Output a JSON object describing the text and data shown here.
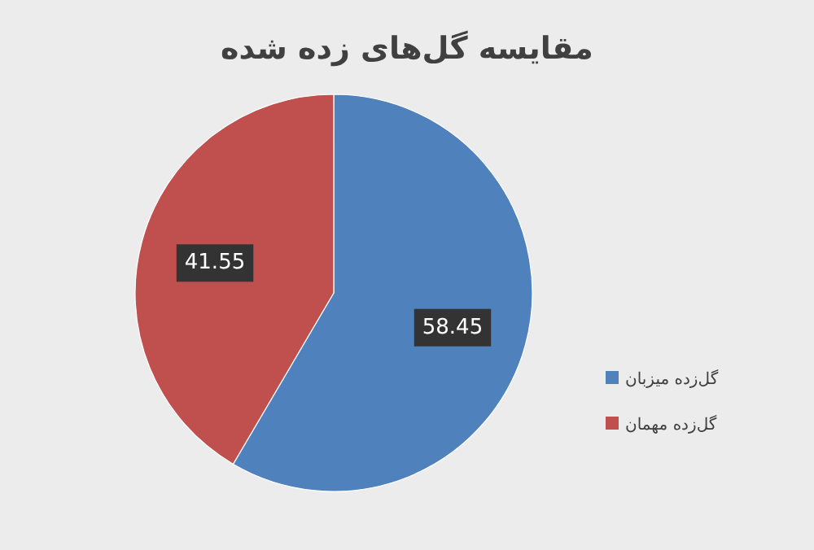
{
  "chart_data": {
    "type": "pie",
    "title": "مقایسه گل‌های زده شده",
    "categories": [
      "گل‌زده میزبان",
      "گل‌زده مهمان"
    ],
    "values": [
      58.45,
      41.55
    ],
    "colors": [
      "#4f81bd",
      "#c0504d"
    ],
    "data_labels": true,
    "legend": "right"
  }
}
